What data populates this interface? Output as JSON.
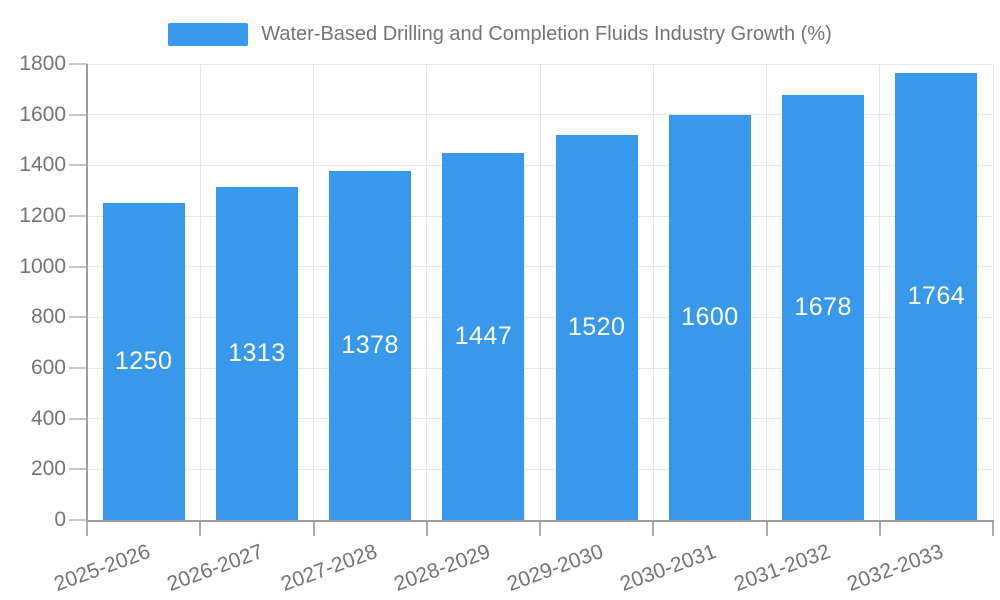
{
  "legend": {
    "label": "Water-Based Drilling and Completion Fluids Industry Growth (%)"
  },
  "chart_data": {
    "type": "bar",
    "title": "Water-Based Drilling and Completion Fluids Industry Growth (%)",
    "categories": [
      "2025-2026",
      "2026-2027",
      "2027-2028",
      "2028-2029",
      "2029-2030",
      "2030-2031",
      "2031-2032",
      "2032-2033"
    ],
    "values": [
      1250,
      1313,
      1378,
      1447,
      1520,
      1600,
      1678,
      1764
    ],
    "value_labels": [
      "1250",
      "1313",
      "1378",
      "1447",
      "1520",
      "1600",
      "1678",
      "1764"
    ],
    "xlabel": "",
    "ylabel": "",
    "ylim": [
      0,
      1800
    ],
    "yticks": [
      0,
      200,
      400,
      600,
      800,
      1000,
      1200,
      1400,
      1600,
      1800
    ],
    "grid": true,
    "legend_position": "top",
    "bar_label_position": "middle-of-bar",
    "x_tick_rotation_deg": -20,
    "colors": {
      "bar": "#3899EC",
      "axis": "#9E9E9E",
      "gridline": "#E6E6E6",
      "tick": "#C9C9C9",
      "x_tick": "#ADADAD",
      "tick_label": "#757575",
      "legend_text": "#757575",
      "value_label": "#FFFFFF",
      "background": "#FFFFFF"
    }
  }
}
